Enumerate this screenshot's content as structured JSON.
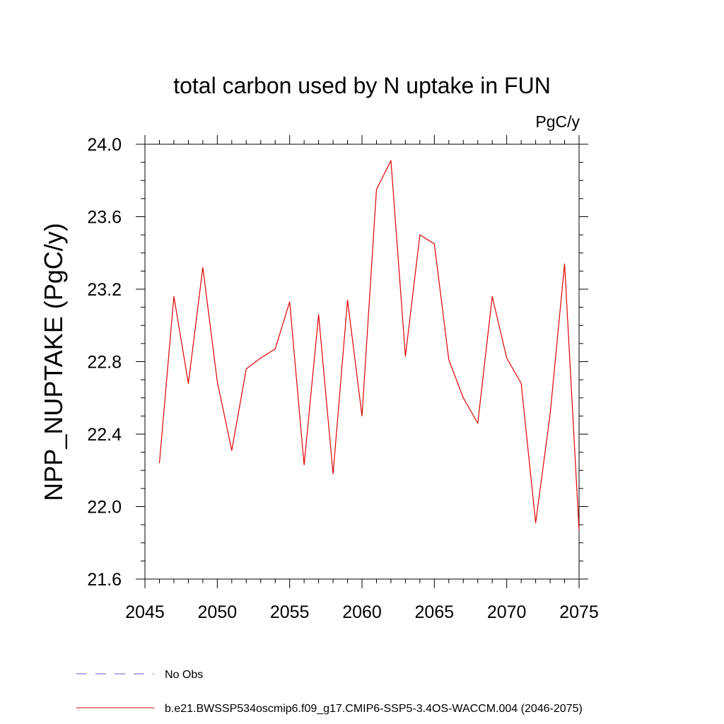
{
  "chart_data": {
    "type": "line",
    "title": "total carbon used by N uptake in FUN",
    "units": "PgC/y",
    "xlabel": "",
    "ylabel": "NPP_NUPTAKE  (PgC/y)",
    "xlim": [
      2045,
      2075
    ],
    "ylim": [
      21.6,
      24.0
    ],
    "xticks": [
      2045,
      2050,
      2055,
      2060,
      2065,
      2070,
      2075
    ],
    "xtick_labels": [
      "2045",
      "2050",
      "2055",
      "2060",
      "2065",
      "2070",
      "2075"
    ],
    "yticks": [
      21.6,
      22.0,
      22.4,
      22.8,
      23.2,
      23.6,
      24.0
    ],
    "ytick_labels": [
      "21.6",
      "22.0",
      "22.4",
      "22.8",
      "23.2",
      "23.6",
      "24.0"
    ],
    "grid": false,
    "x": [
      2046,
      2047,
      2048,
      2049,
      2050,
      2051,
      2052,
      2053,
      2054,
      2055,
      2056,
      2057,
      2058,
      2059,
      2060,
      2061,
      2062,
      2063,
      2064,
      2065,
      2066,
      2067,
      2068,
      2069,
      2070,
      2071,
      2072,
      2073,
      2074,
      2075
    ],
    "series": [
      {
        "name": "b.e21.BWSSP534oscmip6.f09_g17.CMIP6-SSP5-3.4OS-WACCM.004 (2046-2075)",
        "color": "#e00000",
        "style": "solid",
        "values": [
          22.24,
          23.16,
          22.68,
          23.32,
          22.69,
          22.31,
          22.76,
          22.82,
          22.87,
          23.13,
          22.23,
          23.06,
          22.18,
          23.14,
          22.5,
          23.75,
          23.91,
          22.83,
          23.5,
          23.45,
          22.81,
          22.6,
          22.46,
          23.16,
          22.82,
          22.68,
          21.91,
          22.51,
          23.34,
          21.87
        ]
      }
    ],
    "legend": {
      "placement": "bottom",
      "entries": [
        {
          "label": "No Obs",
          "color": "#6a5acd",
          "style": "dashed"
        },
        {
          "label": "b.e21.BWSSP534oscmip6.f09_g17.CMIP6-SSP5-3.4OS-WACCM.004 (2046-2075)",
          "color": "#e00000",
          "style": "solid"
        }
      ]
    }
  }
}
